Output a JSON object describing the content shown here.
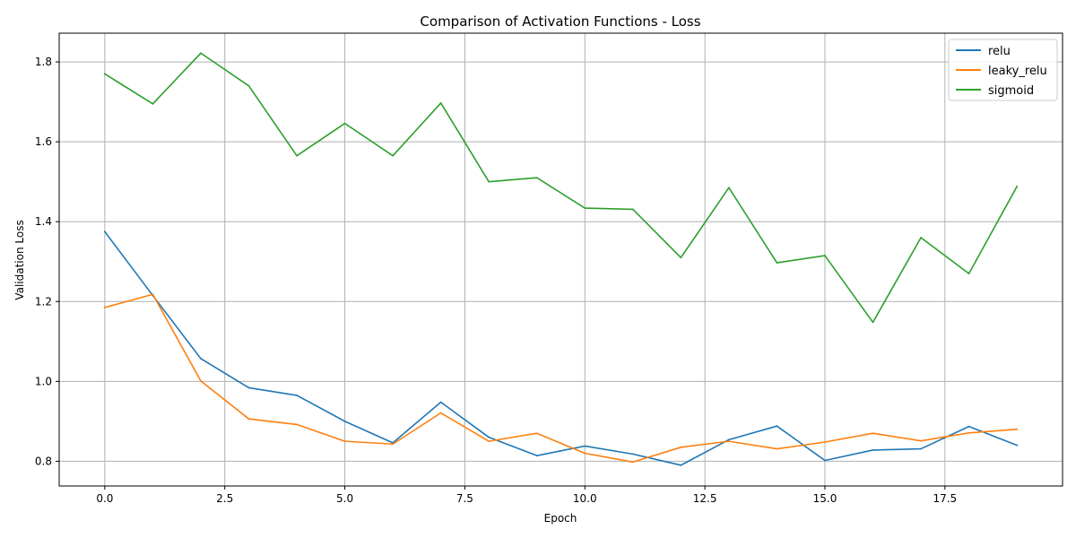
{
  "chart_data": {
    "type": "line",
    "title": "Comparison of Activation Functions - Loss",
    "xlabel": "Epoch",
    "ylabel": "Validation Loss",
    "xlim": [
      -0.95,
      19.95
    ],
    "ylim": [
      0.738,
      1.872
    ],
    "xticks": [
      0.0,
      2.5,
      5.0,
      7.5,
      10.0,
      12.5,
      15.0,
      17.5
    ],
    "xtick_labels": [
      "0.0",
      "2.5",
      "5.0",
      "7.5",
      "10.0",
      "12.5",
      "15.0",
      "17.5"
    ],
    "yticks": [
      0.8,
      1.0,
      1.2,
      1.4,
      1.6,
      1.8
    ],
    "ytick_labels": [
      "0.8",
      "1.0",
      "1.2",
      "1.4",
      "1.6",
      "1.8"
    ],
    "grid": true,
    "legend_position": "top-right",
    "x": [
      0,
      1,
      2,
      3,
      4,
      5,
      6,
      7,
      8,
      9,
      10,
      11,
      12,
      13,
      14,
      15,
      16,
      17,
      18,
      19
    ],
    "series": [
      {
        "name": "relu",
        "color": "#1f77b4",
        "values": [
          1.375,
          1.215,
          1.057,
          0.984,
          0.965,
          0.9,
          0.846,
          0.948,
          0.86,
          0.814,
          0.838,
          0.818,
          0.79,
          0.854,
          0.888,
          0.802,
          0.828,
          0.831,
          0.887,
          0.84
        ]
      },
      {
        "name": "leaky_relu",
        "color": "#ff7f0e",
        "values": [
          1.185,
          1.218,
          1.001,
          0.906,
          0.892,
          0.85,
          0.843,
          0.921,
          0.85,
          0.87,
          0.82,
          0.798,
          0.835,
          0.85,
          0.831,
          0.848,
          0.87,
          0.851,
          0.871,
          0.88
        ]
      },
      {
        "name": "sigmoid",
        "color": "#2ca02c",
        "values": [
          1.77,
          1.695,
          1.822,
          1.74,
          1.565,
          1.646,
          1.565,
          1.697,
          1.5,
          1.51,
          1.434,
          1.431,
          1.31,
          1.485,
          1.297,
          1.315,
          1.148,
          1.36,
          1.27,
          1.488
        ]
      }
    ]
  }
}
